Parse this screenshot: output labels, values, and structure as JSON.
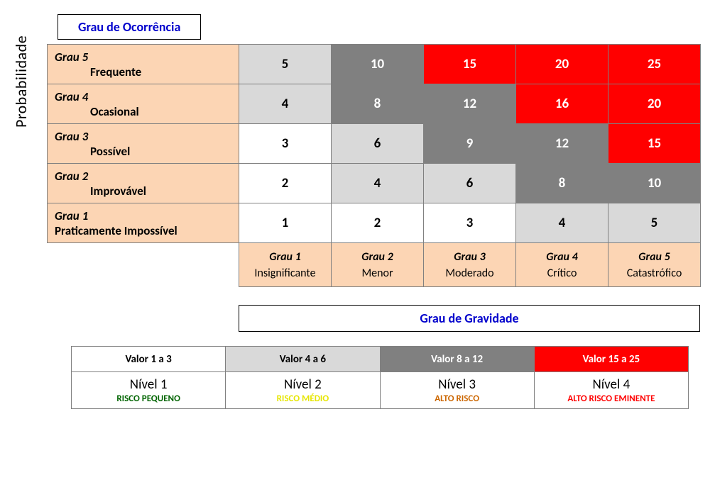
{
  "type": "risk-matrix-heatmap",
  "background_color": "#ffffff",
  "grid_border_color": "#808080",
  "grid_border_width": 1.5,
  "row_header_bg": "#fcd5b4",
  "col_header_bg": "#fcd5b4",
  "axis_title_color": "#0000cc",
  "axis_fontsize": 18,
  "y_axis_label": "Probabilidade",
  "y_axis_fontsize": 22,
  "top_title": "Grau de Ocorrência",
  "bottom_title": "Grau de Gravidade",
  "cell_fontsize": 19,
  "header_fontsize": 17,
  "col_header_fontsize": 16,
  "levels": {
    "white": {
      "bg": "#ffffff",
      "text": "#000000"
    },
    "lightgray": {
      "bg": "#d9d9d9",
      "text": "#000000"
    },
    "darkgray": {
      "bg": "#808080",
      "text": "#ffffff"
    },
    "red": {
      "bg": "#ff0000",
      "text": "#ffffff"
    }
  },
  "rows": [
    {
      "grau": "Grau 5",
      "desc": "Frequente"
    },
    {
      "grau": "Grau 4",
      "desc": "Ocasional"
    },
    {
      "grau": "Grau 3",
      "desc": "Possível"
    },
    {
      "grau": "Grau 2",
      "desc": "Improvável"
    },
    {
      "grau": "Grau 1",
      "desc": "Praticamente Impossível"
    }
  ],
  "cols": [
    {
      "grau": "Grau 1",
      "desc": "Insignificante"
    },
    {
      "grau": "Grau 2",
      "desc": "Menor"
    },
    {
      "grau": "Grau 3",
      "desc": "Moderado"
    },
    {
      "grau": "Grau 4",
      "desc": "Crítico"
    },
    {
      "grau": "Grau 5",
      "desc": "Catastrófico"
    }
  ],
  "cells": [
    [
      {
        "v": "5",
        "l": "lightgray"
      },
      {
        "v": "10",
        "l": "darkgray"
      },
      {
        "v": "15",
        "l": "red"
      },
      {
        "v": "20",
        "l": "red"
      },
      {
        "v": "25",
        "l": "red"
      }
    ],
    [
      {
        "v": "4",
        "l": "lightgray"
      },
      {
        "v": "8",
        "l": "darkgray"
      },
      {
        "v": "12",
        "l": "darkgray"
      },
      {
        "v": "16",
        "l": "red"
      },
      {
        "v": "20",
        "l": "red"
      }
    ],
    [
      {
        "v": "3",
        "l": "white"
      },
      {
        "v": "6",
        "l": "lightgray"
      },
      {
        "v": "9",
        "l": "darkgray"
      },
      {
        "v": "12",
        "l": "darkgray"
      },
      {
        "v": "15",
        "l": "red"
      }
    ],
    [
      {
        "v": "2",
        "l": "white"
      },
      {
        "v": "4",
        "l": "lightgray"
      },
      {
        "v": "6",
        "l": "lightgray"
      },
      {
        "v": "8",
        "l": "darkgray"
      },
      {
        "v": "10",
        "l": "darkgray"
      }
    ],
    [
      {
        "v": "1",
        "l": "white"
      },
      {
        "v": "2",
        "l": "white"
      },
      {
        "v": "3",
        "l": "white"
      },
      {
        "v": "4",
        "l": "lightgray"
      },
      {
        "v": "5",
        "l": "lightgray"
      }
    ]
  ],
  "legend": [
    {
      "range": "Valor 1 a 3",
      "range_level": "white",
      "nivel": "Nível 1",
      "risk": "RISCO PEQUENO",
      "risk_color": "#006400"
    },
    {
      "range": "Valor 4 a 6",
      "range_level": "lightgray",
      "nivel": "Nível 2",
      "risk": "RISCO MÉDIO",
      "risk_color": "#e6e600"
    },
    {
      "range": "Valor 8 a 12",
      "range_level": "darkgray",
      "nivel": "Nível 3",
      "risk": "ALTO RISCO",
      "risk_color": "#cc6600"
    },
    {
      "range": "Valor 15 a 25",
      "range_level": "red",
      "nivel": "Nível 4",
      "risk": "ALTO RISCO EMINENTE",
      "risk_color": "#ff0000"
    }
  ]
}
